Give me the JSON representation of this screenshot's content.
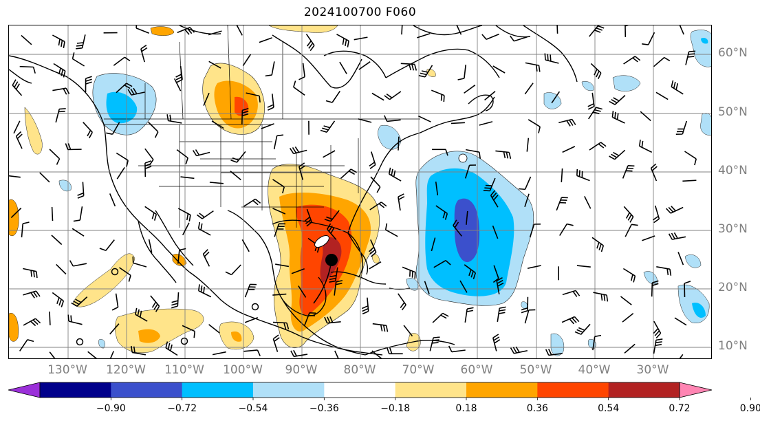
{
  "title": "2024100700 F060",
  "map": {
    "lat_labels": [
      "60°N",
      "50°N",
      "40°N",
      "30°N",
      "20°N",
      "10°N"
    ],
    "lon_labels": [
      "130°W",
      "120°W",
      "110°W",
      "100°W",
      "90°W",
      "80°W",
      "70°W",
      "60°W",
      "50°W",
      "40°W",
      "30°W"
    ],
    "storm_marker": "storm-center-dot"
  },
  "colorbar": {
    "ticks": [
      "−0.90",
      "−0.72",
      "−0.54",
      "−0.36",
      "−0.18",
      "0.18",
      "0.36",
      "0.54",
      "0.72",
      "0.90"
    ],
    "colors": [
      "#9b30d9",
      "#00008b",
      "#3b50cc",
      "#00bfff",
      "#b0e0f8",
      "#ffffff",
      "#ffe48a",
      "#ffa500",
      "#ff4500",
      "#b22222",
      "#ff85b3"
    ]
  }
}
